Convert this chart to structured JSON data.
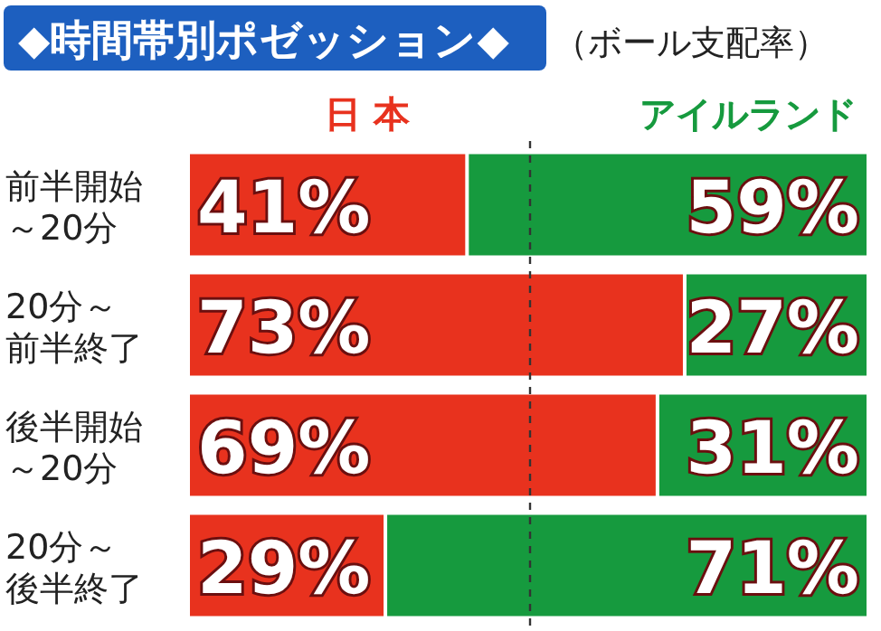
{
  "chart_data": {
    "type": "bar",
    "orientation": "horizontal",
    "stacked": true,
    "title": "◆時間帯別ポゼッション◆",
    "subtitle": "（ボール支配率）",
    "categories": [
      "前半開始～20分",
      "20分～前半終了",
      "後半開始～20分",
      "20分～後半終了"
    ],
    "series": [
      {
        "name": "日 本",
        "color": "#e8321e",
        "values": [
          41,
          73,
          69,
          29
        ],
        "value_labels": [
          "41%",
          "73%",
          "69%",
          "29%"
        ]
      },
      {
        "name": "アイルランド",
        "color": "#169a3e",
        "values": [
          59,
          27,
          31,
          71
        ],
        "value_labels": [
          "59%",
          "27%",
          "31%",
          "71%"
        ]
      }
    ],
    "xlim": [
      0,
      100
    ],
    "legend": "top",
    "ref_lines": [
      {
        "axis": "x",
        "value": 50,
        "line_style": "dashed",
        "color": "#333333"
      }
    ]
  }
}
